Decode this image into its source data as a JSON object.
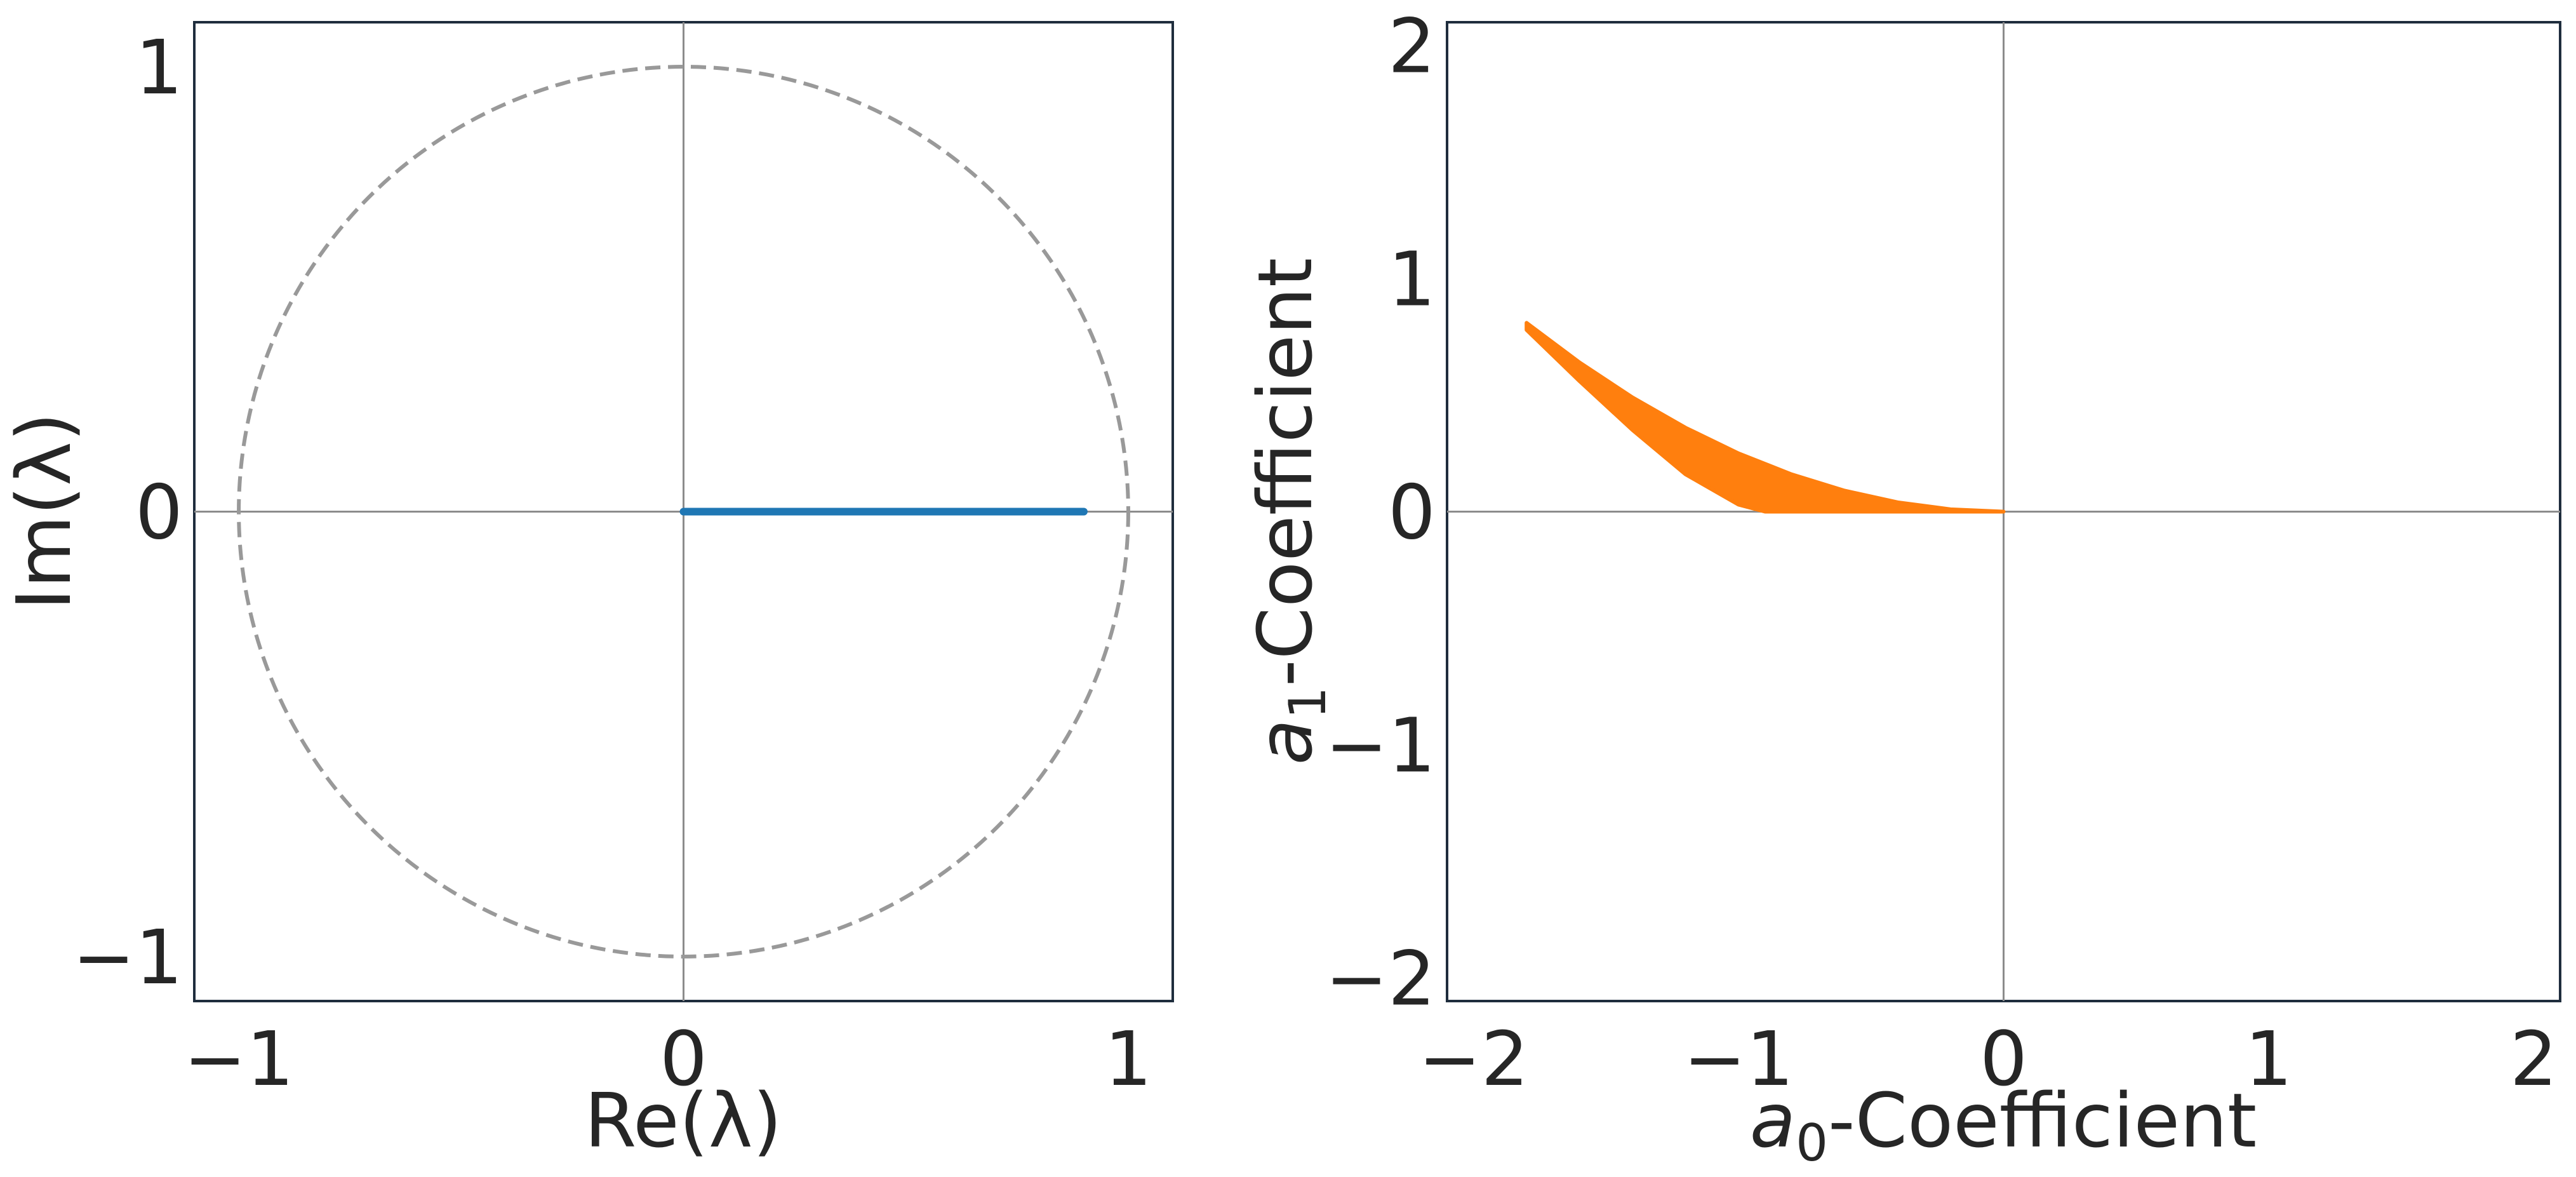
{
  "chart_data": [
    {
      "type": "line",
      "xlabel": "Re(λ)",
      "ylabel": "Im(λ)",
      "xlim": [
        -1.1,
        1.1
      ],
      "ylim": [
        -1.1,
        1.1
      ],
      "xticks": [
        -1,
        0,
        1
      ],
      "yticks": [
        -1,
        0,
        1
      ],
      "xtick_labels": [
        "−1",
        "0",
        "1"
      ],
      "ytick_labels": [
        "−1",
        "0",
        "1"
      ],
      "grid": false,
      "reference_lines": {
        "x": 0,
        "y": 0
      },
      "unit_circle": {
        "radius": 1,
        "style": "dashed",
        "color": "#999999"
      },
      "series": [
        {
          "x": [
            0.0,
            0.9
          ],
          "y": [
            0.0,
            0.0
          ],
          "color": "#1f77b4"
        }
      ]
    },
    {
      "type": "area",
      "xlabel": "a0-Coefficient",
      "ylabel": "a1-Coefficient",
      "xlabel_subscript": "0",
      "ylabel_subscript": "1",
      "xlim": [
        -2.1,
        2.1
      ],
      "ylim": [
        -2.1,
        2.1
      ],
      "xticks": [
        -2,
        -1,
        0,
        1,
        2
      ],
      "yticks": [
        -2,
        -1,
        0,
        1,
        2
      ],
      "xtick_labels": [
        "−2",
        "−1",
        "0",
        "1",
        "2"
      ],
      "ytick_labels": [
        "−2",
        "−1",
        "0",
        "1",
        "2"
      ],
      "grid": false,
      "reference_lines": {
        "x": 0,
        "y": 0
      },
      "series": [
        {
          "color": "#ff7f0e",
          "upper": {
            "x": [
              -1.8,
              -1.6,
              -1.4,
              -1.2,
              -1.0,
              -0.8,
              -0.6,
              -0.4,
              -0.2,
              0.0
            ],
            "y": [
              0.81,
              0.64,
              0.49,
              0.36,
              0.25,
              0.16,
              0.09,
              0.04,
              0.01,
              0.0
            ]
          },
          "lower": {
            "x": [
              -1.8,
              -1.6,
              -1.4,
              -1.2,
              -1.0,
              -0.9,
              -0.6,
              -0.3,
              0.0
            ],
            "y": [
              0.78,
              0.56,
              0.35,
              0.16,
              0.03,
              0.0,
              0.0,
              0.0,
              0.0
            ]
          }
        }
      ]
    }
  ]
}
